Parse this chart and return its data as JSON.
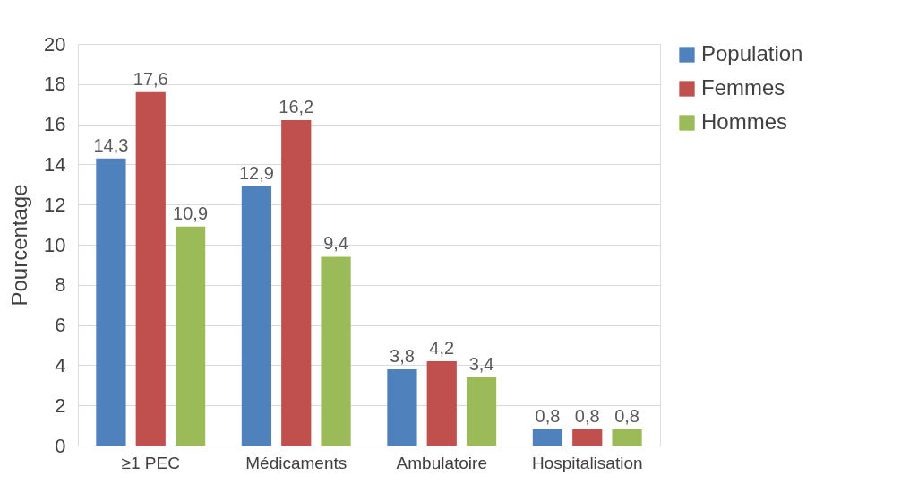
{
  "chart_data": {
    "type": "bar",
    "ylabel": "Pourcentage",
    "categories": [
      "≥1 PEC",
      "Médicaments",
      "Ambulatoire",
      "Hospitalisation"
    ],
    "series": [
      {
        "name": "Population",
        "color": "#4f81bd",
        "values": [
          14.3,
          12.9,
          3.8,
          0.8
        ],
        "value_labels": [
          "14,3",
          "12,9",
          "3,8",
          "0,8"
        ]
      },
      {
        "name": "Femmes",
        "color": "#c0504d",
        "values": [
          17.6,
          16.2,
          4.2,
          0.8
        ],
        "value_labels": [
          "17,6",
          "16,2",
          "4,2",
          "0,8"
        ]
      },
      {
        "name": "Hommes",
        "color": "#9bbb59",
        "values": [
          10.9,
          9.4,
          3.4,
          0.8
        ],
        "value_labels": [
          "10,9",
          "9,4",
          "3,4",
          "0,8"
        ]
      }
    ],
    "ylim": [
      0,
      20
    ],
    "yticks": [
      0,
      2,
      4,
      6,
      8,
      10,
      12,
      14,
      16,
      18,
      20
    ],
    "grid": "y",
    "legend": "right"
  }
}
